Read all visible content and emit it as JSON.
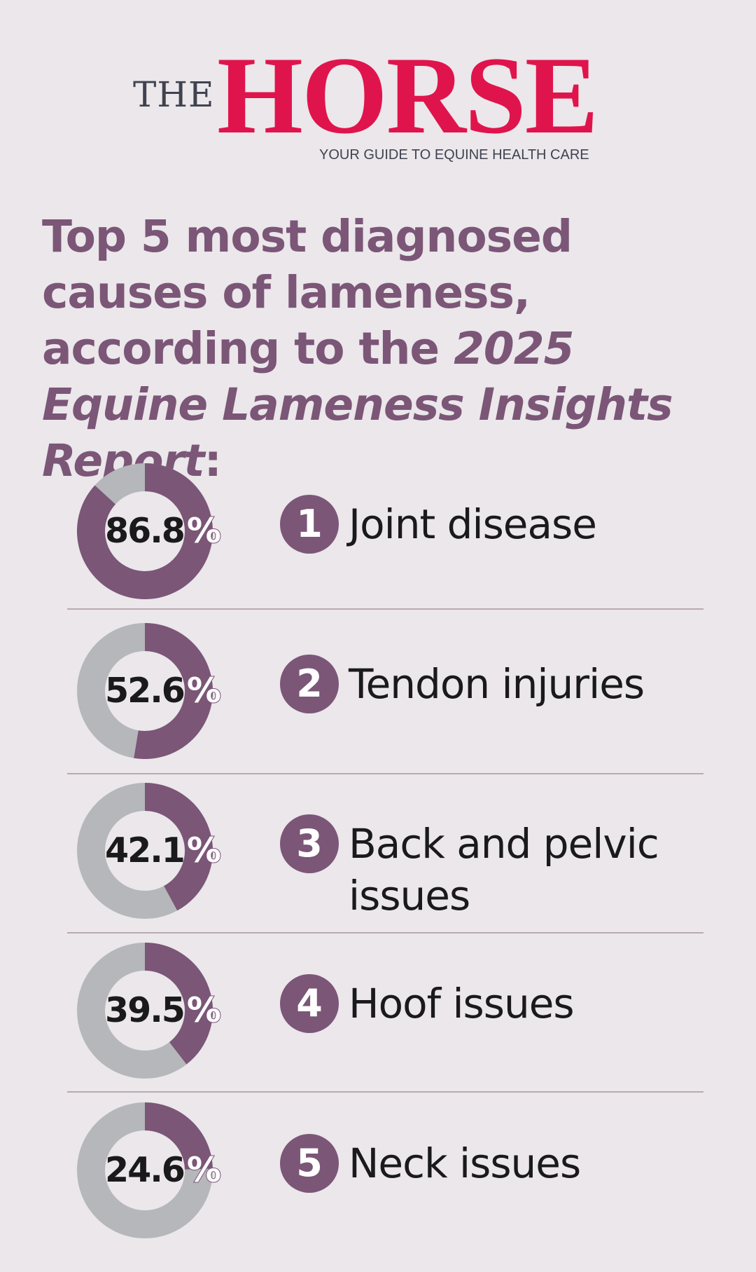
{
  "masthead": {
    "the": "THE",
    "brand": "HORSE",
    "tagline": "YOUR GUIDE TO EQUINE HEALTH CARE"
  },
  "headline": {
    "part1": "Top 5 most diagnosed causes of lameness, according to the ",
    "report": "2025 Equine Lameness Insights Report",
    "end": ":"
  },
  "colors": {
    "filled": "#7b5677",
    "remaining": "#b5b7ba",
    "brand": "#e0144c",
    "background": "#ebe7eb"
  },
  "chart_data": {
    "type": "donut",
    "unit": "%",
    "items": [
      {
        "rank": "1",
        "label": "Joint disease",
        "value": 86.8,
        "value_text": "86.8"
      },
      {
        "rank": "2",
        "label": "Tendon injuries",
        "value": 52.6,
        "value_text": "52.6"
      },
      {
        "rank": "3",
        "label": "Back and pelvic issues",
        "value": 42.1,
        "value_text": "42.1"
      },
      {
        "rank": "4",
        "label": "Hoof issues",
        "value": 39.5,
        "value_text": "39.5"
      },
      {
        "rank": "5",
        "label": "Neck issues",
        "value": 24.6,
        "value_text": "24.6"
      }
    ]
  }
}
